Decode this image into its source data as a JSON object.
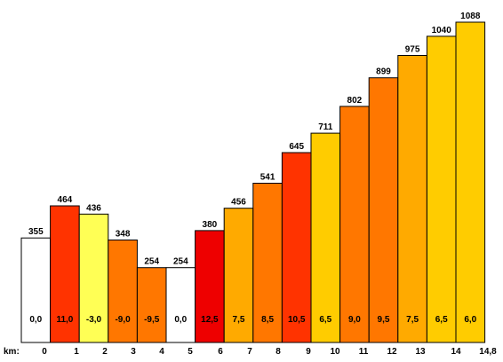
{
  "chart_data": {
    "type": "bar",
    "title": "",
    "xlabel": "",
    "ylabel": "",
    "x_prefix_label": "km:",
    "km_ticks": [
      "0",
      "1",
      "2",
      "3",
      "4",
      "5",
      "6",
      "7",
      "8",
      "9",
      "10",
      "11",
      "12",
      "13",
      "14",
      "14,8"
    ],
    "km_values": [
      0,
      1,
      2,
      3,
      4,
      5,
      6,
      7,
      8,
      9,
      10,
      11,
      12,
      13,
      14,
      14.8
    ],
    "segments": [
      {
        "km_start": 0,
        "km_end": 1,
        "elevation": 355,
        "elevation_label": "355",
        "gradient_label": "0,0",
        "color": "#ffffff"
      },
      {
        "km_start": 1,
        "km_end": 2,
        "elevation": 464,
        "elevation_label": "464",
        "gradient_label": "11,0",
        "color": "#ff3300"
      },
      {
        "km_start": 2,
        "km_end": 3,
        "elevation": 436,
        "elevation_label": "436",
        "gradient_label": "-3,0",
        "color": "#ffff55"
      },
      {
        "km_start": 3,
        "km_end": 4,
        "elevation": 348,
        "elevation_label": "348",
        "gradient_label": "-9,0",
        "color": "#ff7700"
      },
      {
        "km_start": 4,
        "km_end": 5,
        "elevation": 254,
        "elevation_label": "254",
        "gradient_label": "-9,5",
        "color": "#ff7700"
      },
      {
        "km_start": 5,
        "km_end": 6,
        "elevation": 254,
        "elevation_label": "254",
        "gradient_label": "0,0",
        "color": "#ffffff"
      },
      {
        "km_start": 6,
        "km_end": 7,
        "elevation": 380,
        "elevation_label": "380",
        "gradient_label": "12,5",
        "color": "#ee0000"
      },
      {
        "km_start": 7,
        "km_end": 8,
        "elevation": 456,
        "elevation_label": "456",
        "gradient_label": "7,5",
        "color": "#ffaa00"
      },
      {
        "km_start": 8,
        "km_end": 9,
        "elevation": 541,
        "elevation_label": "541",
        "gradient_label": "8,5",
        "color": "#ff7700"
      },
      {
        "km_start": 9,
        "km_end": 10,
        "elevation": 645,
        "elevation_label": "645",
        "gradient_label": "10,5",
        "color": "#ff3300"
      },
      {
        "km_start": 10,
        "km_end": 11,
        "elevation": 711,
        "elevation_label": "711",
        "gradient_label": "6,5",
        "color": "#ffcc00"
      },
      {
        "km_start": 11,
        "km_end": 12,
        "elevation": 802,
        "elevation_label": "802",
        "gradient_label": "9,0",
        "color": "#ff7700"
      },
      {
        "km_start": 12,
        "km_end": 13,
        "elevation": 899,
        "elevation_label": "899",
        "gradient_label": "9,5",
        "color": "#ff7700"
      },
      {
        "km_start": 13,
        "km_end": 14,
        "elevation": 975,
        "elevation_label": "975",
        "gradient_label": "7,5",
        "color": "#ffaa00"
      },
      {
        "km_start": 14,
        "km_end": 14.8,
        "elevation": 1040,
        "elevation_label": "1040",
        "gradient_label": "6,5",
        "color": "#ffcc00"
      },
      {
        "km_start": 14.8,
        "km_end": 15.8,
        "elevation": 1088,
        "elevation_label": "1088",
        "gradient_label": "6,0",
        "color": "#ffcc00"
      }
    ],
    "ylim": [
      0,
      1088
    ],
    "grid": false,
    "legend": "none"
  }
}
